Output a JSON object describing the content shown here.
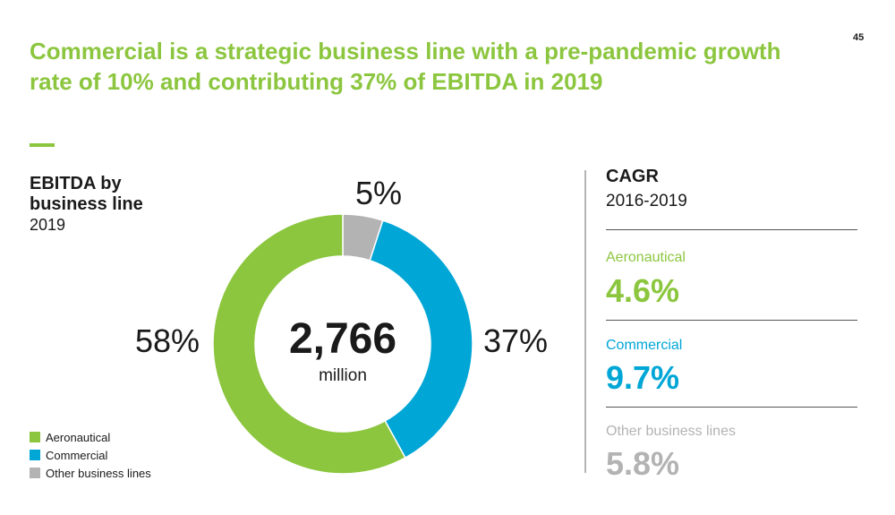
{
  "slide": {
    "title": "Commercial is a strategic business line with a pre-pandemic growth rate of 10% and contributing 37% of EBITDA in 2019",
    "page_number": "45"
  },
  "colors": {
    "aeronautical": "#8cc63f",
    "commercial": "#00a6d6",
    "other": "#b3b3b3"
  },
  "chart_data": {
    "type": "pie",
    "donut": true,
    "title": "EBITDA by business line",
    "subtitle": "2019",
    "center_value": "2,766",
    "center_unit": "million",
    "categories": [
      "Aeronautical",
      "Commercial",
      "Other business lines"
    ],
    "values": [
      58,
      37,
      5
    ],
    "value_labels": [
      "58%",
      "37%",
      "5%"
    ],
    "legend_position": "bottom-left"
  },
  "cagr": {
    "title": "CAGR",
    "period": "2016-2019",
    "items": [
      {
        "label": "Aeronautical",
        "value": "4.6%"
      },
      {
        "label": "Commercial",
        "value": "9.7%"
      },
      {
        "label": "Other business lines",
        "value": "5.8%"
      }
    ]
  }
}
